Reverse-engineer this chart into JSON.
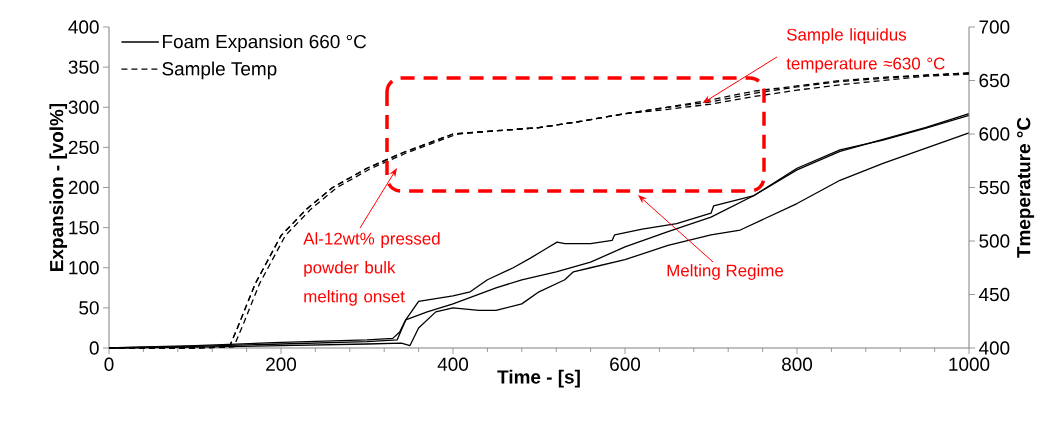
{
  "chart_data": {
    "type": "line",
    "xlabel": "Time - [s]",
    "ylabel": "Expansion - [vol%]",
    "y2label": "Tmeperature °C",
    "xlim": [
      0,
      1000
    ],
    "xticks": [
      0,
      200,
      400,
      600,
      800,
      1000
    ],
    "ylim": [
      0,
      400
    ],
    "yticks": [
      0,
      50,
      100,
      150,
      200,
      250,
      300,
      350,
      400
    ],
    "y2lim": [
      400,
      700
    ],
    "y2ticks": [
      400,
      450,
      500,
      550,
      600,
      650,
      700
    ],
    "legend": "top left",
    "grid": false,
    "annotations": [
      {
        "text": "Sample liquidus temperature ≈630 °C",
        "x": 690,
        "y": 305
      },
      "Al-12wt% pressed powder bulk melting onset",
      "Melting Regime"
    ],
    "series": [
      {
        "name": "Foam Expansion 660 °C",
        "color": "#000000",
        "line_style": "solid",
        "x": [
          0,
          30,
          100,
          200,
          300,
          330,
          338,
          345,
          360,
          400,
          420,
          440,
          470,
          490,
          510,
          521,
          530,
          560,
          585,
          588,
          620,
          660,
          700,
          703,
          750,
          800,
          850,
          900,
          950,
          1000
        ],
        "values": [
          0,
          1,
          3,
          7,
          10,
          12,
          20,
          35,
          58,
          65,
          70,
          85,
          100,
          112,
          125,
          132,
          130,
          130,
          134,
          141,
          148,
          155,
          168,
          177,
          190,
          224,
          247,
          259,
          274,
          290
        ]
      },
      {
        "color": "#000000",
        "line_style": "solid",
        "x": [
          0,
          100,
          200,
          300,
          335,
          345,
          370,
          400,
          450,
          480,
          520,
          560,
          600,
          650,
          700,
          750,
          800,
          850,
          900,
          950,
          1000
        ],
        "values": [
          0,
          2,
          5,
          8,
          10,
          35,
          45,
          55,
          75,
          85,
          95,
          107,
          126,
          145,
          163,
          190,
          222,
          245,
          260,
          275,
          292
        ]
      },
      {
        "color": "#000000",
        "line_style": "solid",
        "x": [
          0,
          100,
          200,
          300,
          340,
          350,
          360,
          380,
          400,
          430,
          450,
          480,
          500,
          530,
          540,
          560,
          600,
          650,
          700,
          734,
          800,
          850,
          900,
          950,
          1000
        ],
        "values": [
          0,
          1,
          3,
          5,
          6,
          3,
          25,
          45,
          50,
          47,
          47,
          55,
          70,
          85,
          95,
          100,
          110,
          128,
          141,
          147,
          180,
          209,
          230,
          249,
          268
        ]
      },
      {
        "name": "Sample Temp",
        "color": "#000000",
        "line_style": "dashed",
        "axis": "y2",
        "x": [
          0,
          100,
          140,
          150,
          170,
          200,
          230,
          260,
          300,
          340,
          380,
          400,
          450,
          500,
          550,
          600,
          650,
          700,
          750,
          800,
          850,
          900,
          950,
          1000
        ],
        "values": [
          400,
          400,
          401,
          420,
          460,
          505,
          530,
          550,
          568,
          582,
          594,
          600,
          603,
          606,
          612,
          619,
          625,
          632,
          640,
          645,
          650,
          653,
          655,
          657
        ]
      },
      {
        "color": "#000000",
        "line_style": "dashed",
        "axis": "y2",
        "x": [
          0,
          100,
          145,
          155,
          175,
          205,
          235,
          265,
          305,
          345,
          385,
          405,
          450,
          500,
          550,
          600,
          650,
          700,
          750,
          800,
          850,
          900,
          950,
          1000
        ],
        "values": [
          400,
          400,
          401,
          420,
          460,
          505,
          530,
          550,
          568,
          582,
          594,
          600,
          603,
          606,
          612,
          619,
          625,
          630,
          638,
          644,
          649,
          652,
          655,
          657
        ]
      },
      {
        "color": "#000000",
        "line_style": "dashed",
        "axis": "y2",
        "x": [
          0,
          100,
          140,
          150,
          170,
          200,
          230,
          260,
          300,
          340,
          380,
          400,
          450,
          500,
          550,
          600,
          650,
          700,
          750,
          800,
          850,
          900,
          950,
          1000
        ],
        "values": [
          400,
          400,
          401,
          420,
          460,
          505,
          530,
          550,
          568,
          582,
          594,
          600,
          603,
          606,
          612,
          619,
          623,
          628,
          635,
          641,
          646,
          650,
          654,
          656
        ]
      }
    ]
  }
}
